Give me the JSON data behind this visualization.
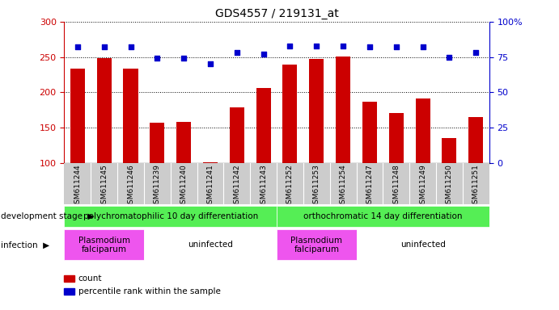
{
  "title": "GDS4557 / 219131_at",
  "samples": [
    "GSM611244",
    "GSM611245",
    "GSM611246",
    "GSM611239",
    "GSM611240",
    "GSM611241",
    "GSM611242",
    "GSM611243",
    "GSM611252",
    "GSM611253",
    "GSM611254",
    "GSM611247",
    "GSM611248",
    "GSM611249",
    "GSM611250",
    "GSM611251"
  ],
  "counts": [
    233,
    248,
    234,
    157,
    158,
    101,
    179,
    206,
    239,
    247,
    251,
    186,
    170,
    191,
    135,
    165
  ],
  "percentiles": [
    82,
    82,
    82,
    74,
    74,
    70,
    78,
    77,
    83,
    83,
    83,
    82,
    82,
    82,
    75,
    78
  ],
  "ylim_left": [
    100,
    300
  ],
  "ylim_right": [
    0,
    100
  ],
  "yticks_left": [
    100,
    150,
    200,
    250,
    300
  ],
  "yticks_right": [
    0,
    25,
    50,
    75,
    100
  ],
  "bar_color": "#cc0000",
  "dot_color": "#0000cc",
  "background_color": "#ffffff",
  "grid_color": "#000000",
  "dev_stage_groups": [
    {
      "label": "polychromatophilic 10 day differentiation",
      "start": 0,
      "end": 7,
      "color": "#55ee55"
    },
    {
      "label": "orthochromatic 14 day differentiation",
      "start": 8,
      "end": 15,
      "color": "#55ee55"
    }
  ],
  "infection_groups": [
    {
      "label": "Plasmodium\nfalciparum",
      "start": 0,
      "end": 2,
      "color": "#ee55ee"
    },
    {
      "label": "uninfected",
      "start": 3,
      "end": 7,
      "color": "#ee55ee"
    },
    {
      "label": "Plasmodium\nfalciparum",
      "start": 8,
      "end": 10,
      "color": "#ee55ee"
    },
    {
      "label": "uninfected",
      "start": 11,
      "end": 15,
      "color": "#ee55ee"
    }
  ],
  "tick_color_left": "#cc0000",
  "tick_color_right": "#0000cc",
  "dev_stage_label": "development stage",
  "infection_label": "infection",
  "legend_count_label": "count",
  "legend_percentile_label": "percentile rank within the sample",
  "xtick_bg_color": "#cccccc"
}
